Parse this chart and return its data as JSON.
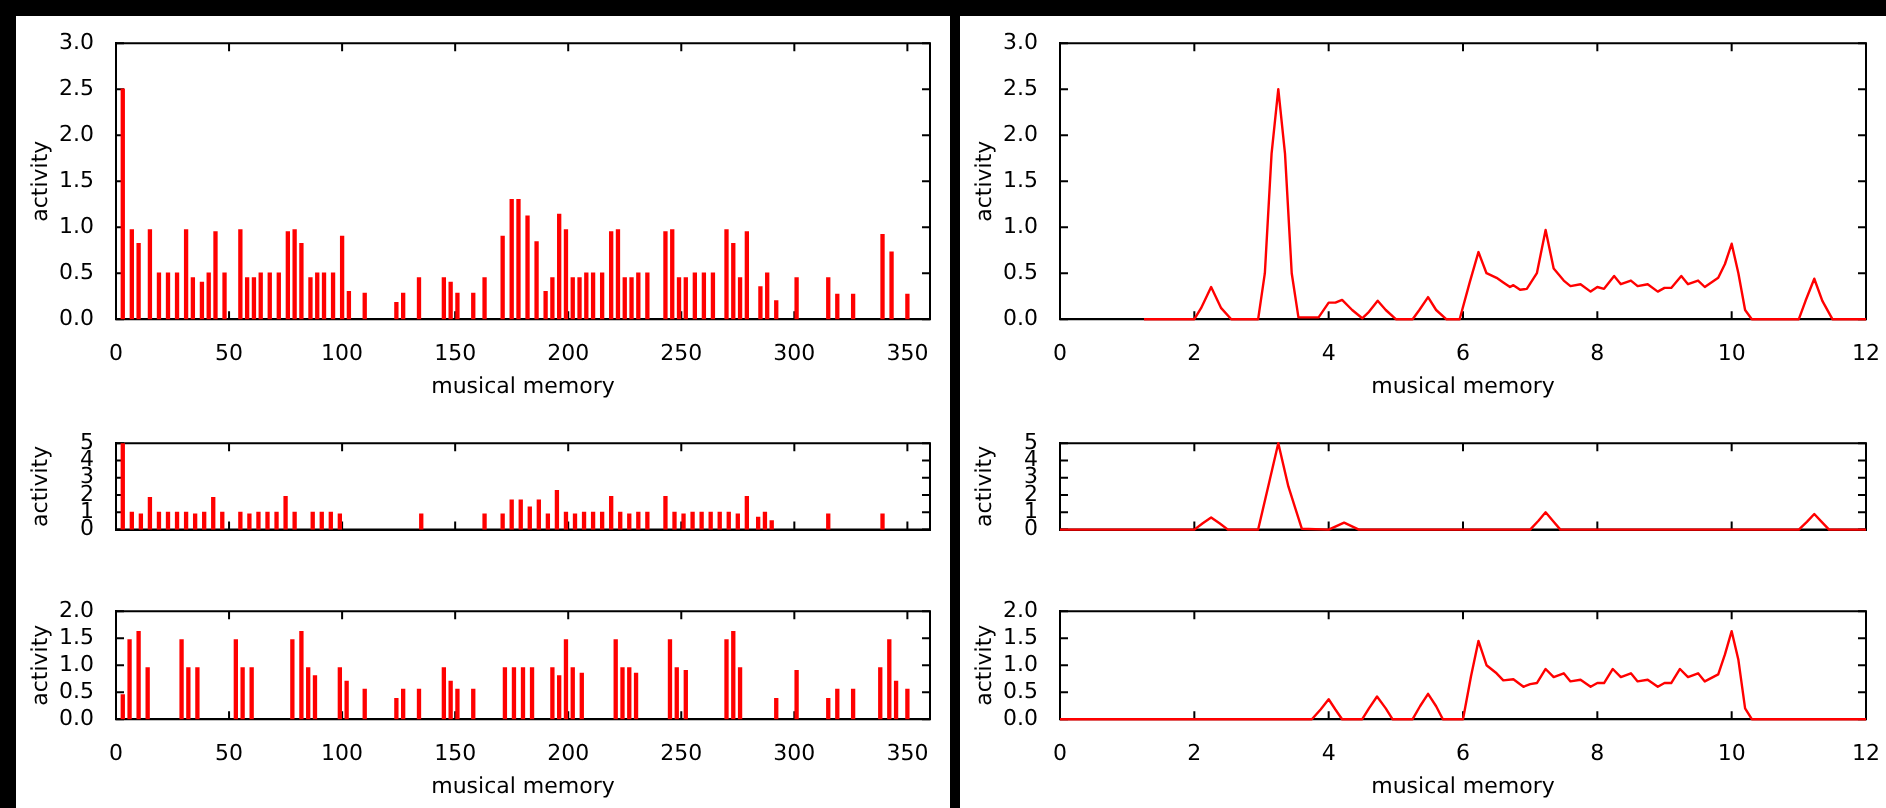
{
  "chart_data": [
    {
      "type": "bar",
      "xlabel": "musical memory",
      "ylabel": "activity",
      "grid": false,
      "legend": false,
      "xlim": [
        0,
        360
      ],
      "xticks": [
        0,
        50,
        100,
        150,
        200,
        250,
        300,
        350
      ],
      "ylim": [
        0,
        3
      ],
      "yticks": [
        {
          "value": 0,
          "label": "0.0"
        },
        {
          "value": 0.5,
          "label": "0.5"
        },
        {
          "value": 1,
          "label": "1.0"
        },
        {
          "value": 1.5,
          "label": "1.5"
        },
        {
          "value": 2,
          "label": "2.0"
        },
        {
          "value": 2.5,
          "label": "2.5"
        },
        {
          "value": 3,
          "label": "3.0"
        }
      ],
      "series": [
        {
          "color": "#ff0000",
          "x": [
            3,
            7,
            10,
            15,
            19,
            23,
            27,
            31,
            34,
            38,
            41,
            44,
            48,
            55,
            58,
            61,
            64,
            68,
            72,
            76,
            79,
            82,
            86,
            89,
            92,
            96,
            100,
            103,
            110,
            124,
            127,
            134,
            145,
            148,
            151,
            158,
            163,
            171,
            175,
            178,
            182,
            186,
            190,
            193,
            196,
            199,
            202,
            205,
            208,
            211,
            215,
            219,
            222,
            225,
            228,
            231,
            235,
            243,
            246,
            249,
            252,
            256,
            260,
            264,
            270,
            273,
            276,
            279,
            285,
            288,
            292,
            301,
            315,
            319,
            326,
            339,
            343,
            350
          ],
          "values": [
            2.5,
            0.97,
            0.82,
            0.97,
            0.5,
            0.5,
            0.5,
            0.97,
            0.45,
            0.4,
            0.5,
            0.95,
            0.5,
            0.97,
            0.45,
            0.45,
            0.5,
            0.5,
            0.5,
            0.95,
            0.97,
            0.82,
            0.45,
            0.5,
            0.5,
            0.5,
            0.9,
            0.3,
            0.28,
            0.18,
            0.28,
            0.45,
            0.45,
            0.4,
            0.28,
            0.28,
            0.45,
            0.9,
            1.3,
            1.3,
            1.12,
            0.84,
            0.3,
            0.45,
            1.14,
            0.97,
            0.45,
            0.45,
            0.5,
            0.5,
            0.5,
            0.95,
            0.97,
            0.45,
            0.45,
            0.5,
            0.5,
            0.95,
            0.97,
            0.45,
            0.45,
            0.5,
            0.5,
            0.5,
            0.97,
            0.82,
            0.45,
            0.95,
            0.35,
            0.5,
            0.2,
            0.45,
            0.45,
            0.27,
            0.27,
            0.92,
            0.73,
            0.27
          ]
        }
      ]
    },
    {
      "type": "bar",
      "ylabel": "activity",
      "grid": false,
      "legend": false,
      "tick_labels": "y",
      "xlim": [
        0,
        360
      ],
      "xticks": [
        0,
        50,
        100,
        150,
        200,
        250,
        300,
        350
      ],
      "ylim": [
        0,
        5
      ],
      "yticks": [
        0,
        1,
        2,
        3,
        4,
        5
      ],
      "series": [
        {
          "color": "#ff0000",
          "x": [
            3,
            7,
            11,
            15,
            19,
            23,
            27,
            31,
            35,
            39,
            43,
            47,
            55,
            59,
            63,
            67,
            71,
            75,
            79,
            87,
            91,
            95,
            99,
            135,
            163,
            171,
            175,
            179,
            183,
            187,
            191,
            195,
            199,
            203,
            207,
            211,
            215,
            219,
            223,
            227,
            231,
            235,
            243,
            247,
            251,
            255,
            259,
            263,
            267,
            271,
            275,
            279,
            284,
            287,
            290,
            315,
            339
          ],
          "values": [
            5,
            1,
            0.9,
            1.85,
            1,
            1,
            1,
            1,
            0.9,
            1,
            1.85,
            1,
            1,
            0.9,
            1,
            1,
            1,
            1.9,
            1,
            1,
            1,
            1,
            0.9,
            0.9,
            0.9,
            0.9,
            1.7,
            1.7,
            1.3,
            1.7,
            0.9,
            2.25,
            1,
            0.9,
            1,
            1,
            1,
            1.9,
            1,
            0.9,
            1,
            1,
            1.9,
            1,
            0.9,
            1,
            1,
            1,
            1,
            1,
            0.9,
            1.9,
            0.7,
            1,
            0.5,
            0.9,
            0.9
          ]
        }
      ]
    },
    {
      "type": "bar",
      "xlabel": "musical memory",
      "ylabel": "activity",
      "grid": false,
      "legend": false,
      "xlim": [
        0,
        360
      ],
      "xticks": [
        0,
        50,
        100,
        150,
        200,
        250,
        300,
        350
      ],
      "ylim": [
        0,
        2
      ],
      "yticks": [
        {
          "value": 0,
          "label": "0.0"
        },
        {
          "value": 0.5,
          "label": "0.5"
        },
        {
          "value": 1,
          "label": "1.0"
        },
        {
          "value": 1.5,
          "label": "1.5"
        },
        {
          "value": 2,
          "label": "2.0"
        }
      ],
      "series": [
        {
          "color": "#ff0000",
          "x": [
            3,
            6,
            10,
            14,
            29,
            32,
            36,
            53,
            56,
            60,
            78,
            82,
            85,
            88,
            99,
            102,
            110,
            124,
            127,
            134,
            145,
            148,
            151,
            158,
            172,
            176,
            180,
            184,
            193,
            196,
            199,
            202,
            206,
            221,
            224,
            227,
            230,
            245,
            248,
            252,
            270,
            273,
            276,
            292,
            301,
            315,
            319,
            326,
            338,
            342,
            345,
            350
          ],
          "values": [
            0.45,
            1.47,
            1.62,
            0.95,
            1.47,
            0.95,
            0.95,
            1.47,
            0.95,
            0.95,
            1.47,
            1.62,
            0.95,
            0.8,
            0.95,
            0.7,
            0.55,
            0.38,
            0.55,
            0.55,
            0.95,
            0.7,
            0.55,
            0.55,
            0.95,
            0.95,
            0.95,
            0.95,
            0.95,
            0.8,
            1.47,
            0.95,
            0.85,
            1.47,
            0.95,
            0.95,
            0.85,
            1.47,
            0.95,
            0.9,
            1.47,
            1.62,
            0.95,
            0.38,
            0.9,
            0.38,
            0.55,
            0.55,
            0.95,
            1.47,
            0.7,
            0.55
          ]
        }
      ]
    },
    {
      "type": "line",
      "xlabel": "musical memory",
      "ylabel": "activity",
      "grid": false,
      "legend": false,
      "marker": "none",
      "line_style": "solid",
      "xlim": [
        0,
        12
      ],
      "xticks": [
        0,
        2,
        4,
        6,
        8,
        10,
        12
      ],
      "ylim": [
        0,
        3
      ],
      "yticks": [
        {
          "value": 0,
          "label": "0.0"
        },
        {
          "value": 0.5,
          "label": "0.5"
        },
        {
          "value": 1,
          "label": "1.0"
        },
        {
          "value": 1.5,
          "label": "1.5"
        },
        {
          "value": 2,
          "label": "2.0"
        },
        {
          "value": 2.5,
          "label": "2.5"
        },
        {
          "value": 3,
          "label": "3.0"
        }
      ],
      "series": [
        {
          "color": "#ff0000",
          "x": [
            1.25,
            2.0,
            2.1,
            2.25,
            2.4,
            2.55,
            2.95,
            3.05,
            3.15,
            3.25,
            3.35,
            3.45,
            3.55,
            3.85,
            4.0,
            4.1,
            4.2,
            4.35,
            4.5,
            4.6,
            4.73,
            4.85,
            5.0,
            5.25,
            5.35,
            5.48,
            5.6,
            5.75,
            5.95,
            6.1,
            6.23,
            6.35,
            6.5,
            6.6,
            6.7,
            6.75,
            6.85,
            6.95,
            7.1,
            7.23,
            7.35,
            7.5,
            7.6,
            7.75,
            7.9,
            8.0,
            8.1,
            8.25,
            8.35,
            8.5,
            8.6,
            8.75,
            8.9,
            9.0,
            9.1,
            9.25,
            9.35,
            9.5,
            9.6,
            9.8,
            9.9,
            10.0,
            10.1,
            10.2,
            10.3,
            11.0,
            11.1,
            11.23,
            11.35,
            11.5,
            12
          ],
          "values": [
            0,
            0,
            0.12,
            0.35,
            0.12,
            0,
            0,
            0.5,
            1.8,
            2.5,
            1.8,
            0.5,
            0.02,
            0.02,
            0.18,
            0.18,
            0.21,
            0.1,
            0.01,
            0.08,
            0.2,
            0.1,
            0,
            0,
            0.1,
            0.24,
            0.1,
            0,
            0,
            0.4,
            0.73,
            0.5,
            0.45,
            0.4,
            0.35,
            0.37,
            0.32,
            0.33,
            0.5,
            0.97,
            0.55,
            0.42,
            0.36,
            0.38,
            0.3,
            0.35,
            0.33,
            0.47,
            0.38,
            0.42,
            0.36,
            0.38,
            0.3,
            0.34,
            0.34,
            0.47,
            0.38,
            0.42,
            0.35,
            0.45,
            0.6,
            0.82,
            0.5,
            0.1,
            0,
            0,
            0.2,
            0.44,
            0.2,
            0,
            0
          ]
        }
      ]
    },
    {
      "type": "line",
      "ylabel": "activity",
      "grid": false,
      "legend": false,
      "marker": "none",
      "line_style": "solid",
      "tick_labels": "y",
      "xlim": [
        0,
        12
      ],
      "xticks": [
        0,
        2,
        4,
        6,
        8,
        10,
        12
      ],
      "ylim": [
        0,
        5
      ],
      "yticks": [
        0,
        1,
        2,
        3,
        4,
        5
      ],
      "series": [
        {
          "color": "#ff0000",
          "x": [
            0,
            2.0,
            2.12,
            2.25,
            2.38,
            2.5,
            2.95,
            3.1,
            3.25,
            3.4,
            3.6,
            4.0,
            4.23,
            4.45,
            7.0,
            7.12,
            7.23,
            7.34,
            7.45,
            11.0,
            11.12,
            11.23,
            11.34,
            11.45,
            12
          ],
          "values": [
            0,
            0,
            0.35,
            0.7,
            0.35,
            0,
            0,
            2.5,
            5,
            2.5,
            0.05,
            0,
            0.4,
            0,
            0,
            0.5,
            1.0,
            0.5,
            0,
            0,
            0.45,
            0.9,
            0.45,
            0,
            0
          ]
        }
      ]
    },
    {
      "type": "line",
      "xlabel": "musical memory",
      "ylabel": "activity",
      "grid": false,
      "legend": false,
      "marker": "none",
      "line_style": "solid",
      "xlim": [
        0,
        12
      ],
      "xticks": [
        0,
        2,
        4,
        6,
        8,
        10,
        12
      ],
      "ylim": [
        0,
        2
      ],
      "yticks": [
        {
          "value": 0,
          "label": "0.0"
        },
        {
          "value": 0.5,
          "label": "0.5"
        },
        {
          "value": 1,
          "label": "1.0"
        },
        {
          "value": 1.5,
          "label": "1.5"
        },
        {
          "value": 2,
          "label": "2.0"
        }
      ],
      "series": [
        {
          "color": "#ff0000",
          "x": [
            0,
            3.75,
            3.88,
            4.0,
            4.1,
            4.2,
            4.5,
            4.6,
            4.72,
            4.85,
            4.95,
            5.25,
            5.36,
            5.48,
            5.6,
            5.7,
            6.0,
            6.12,
            6.23,
            6.35,
            6.5,
            6.6,
            6.75,
            6.9,
            7.0,
            7.1,
            7.23,
            7.35,
            7.5,
            7.6,
            7.75,
            7.9,
            8.0,
            8.1,
            8.23,
            8.35,
            8.5,
            8.6,
            8.75,
            8.9,
            9.0,
            9.1,
            9.23,
            9.35,
            9.5,
            9.6,
            9.8,
            9.9,
            10.0,
            10.1,
            10.2,
            10.3,
            12
          ],
          "values": [
            0,
            0,
            0.18,
            0.37,
            0.18,
            0,
            0,
            0.2,
            0.42,
            0.2,
            0,
            0,
            0.24,
            0.47,
            0.24,
            0,
            0,
            0.8,
            1.45,
            1.0,
            0.85,
            0.72,
            0.74,
            0.6,
            0.65,
            0.67,
            0.93,
            0.78,
            0.85,
            0.7,
            0.73,
            0.6,
            0.67,
            0.67,
            0.93,
            0.78,
            0.85,
            0.7,
            0.73,
            0.6,
            0.67,
            0.67,
            0.93,
            0.78,
            0.85,
            0.7,
            0.83,
            1.2,
            1.63,
            1.1,
            0.2,
            0,
            0
          ]
        }
      ]
    }
  ]
}
